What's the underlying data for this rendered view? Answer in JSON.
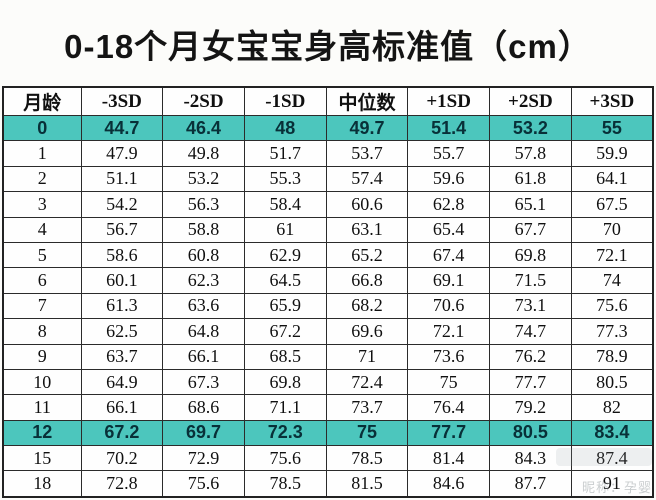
{
  "title": "0-18个月女宝宝身高标准值（cm）",
  "colors": {
    "highlight_row_bg": "#4cc6bd",
    "highlight_row_text": "#083038",
    "border": "#2b2b2b",
    "text": "#101010",
    "background": "#fcfcfa"
  },
  "watermark": {
    "text": "昵称：孕婴"
  },
  "chart_data": {
    "type": "table",
    "title": "0-18个月女宝宝身高标准值（cm）",
    "columns": [
      "月龄",
      "-3SD",
      "-2SD",
      "-1SD",
      "中位数",
      "+1SD",
      "+2SD",
      "+3SD"
    ],
    "rows": [
      [
        "0",
        "44.7",
        "46.4",
        "48",
        "49.7",
        "51.4",
        "53.2",
        "55"
      ],
      [
        "1",
        "47.9",
        "49.8",
        "51.7",
        "53.7",
        "55.7",
        "57.8",
        "59.9"
      ],
      [
        "2",
        "51.1",
        "53.2",
        "55.3",
        "57.4",
        "59.6",
        "61.8",
        "64.1"
      ],
      [
        "3",
        "54.2",
        "56.3",
        "58.4",
        "60.6",
        "62.8",
        "65.1",
        "67.5"
      ],
      [
        "4",
        "56.7",
        "58.8",
        "61",
        "63.1",
        "65.4",
        "67.7",
        "70"
      ],
      [
        "5",
        "58.6",
        "60.8",
        "62.9",
        "65.2",
        "67.4",
        "69.8",
        "72.1"
      ],
      [
        "6",
        "60.1",
        "62.3",
        "64.5",
        "66.8",
        "69.1",
        "71.5",
        "74"
      ],
      [
        "7",
        "61.3",
        "63.6",
        "65.9",
        "68.2",
        "70.6",
        "73.1",
        "75.6"
      ],
      [
        "8",
        "62.5",
        "64.8",
        "67.2",
        "69.6",
        "72.1",
        "74.7",
        "77.3"
      ],
      [
        "9",
        "63.7",
        "66.1",
        "68.5",
        "71",
        "73.6",
        "76.2",
        "78.9"
      ],
      [
        "10",
        "64.9",
        "67.3",
        "69.8",
        "72.4",
        "75",
        "77.7",
        "80.5"
      ],
      [
        "11",
        "66.1",
        "68.6",
        "71.1",
        "73.7",
        "76.4",
        "79.2",
        "82"
      ],
      [
        "12",
        "67.2",
        "69.7",
        "72.3",
        "75",
        "77.7",
        "80.5",
        "83.4"
      ],
      [
        "15",
        "70.2",
        "72.9",
        "75.6",
        "78.5",
        "81.4",
        "84.3",
        "87.4"
      ],
      [
        "18",
        "72.8",
        "75.6",
        "78.5",
        "81.5",
        "84.6",
        "87.7",
        "91"
      ]
    ],
    "highlighted_rows": [
      "0",
      "12"
    ]
  }
}
